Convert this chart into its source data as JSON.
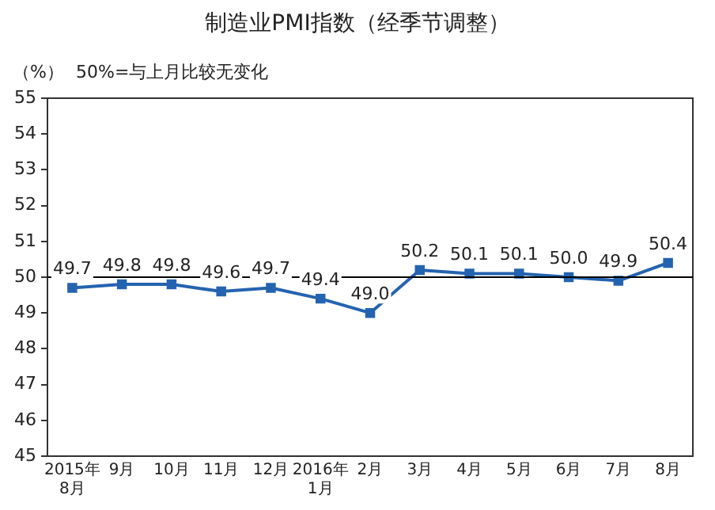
{
  "chart_data": {
    "type": "line",
    "title": "制造业PMI指数（经季节调整）",
    "ylabel": "（%）",
    "annotations": [
      "50%=与上月比较无变化"
    ],
    "categories": [
      "2015年\n8月",
      "9月",
      "10月",
      "11月",
      "12月",
      "2016年\n1月",
      "2月",
      "3月",
      "4月",
      "5月",
      "6月",
      "7月",
      "8月"
    ],
    "series": [
      {
        "color": "#2463b0",
        "values": [
          49.7,
          49.8,
          49.8,
          49.6,
          49.7,
          49.4,
          49.0,
          50.2,
          50.1,
          50.1,
          50.0,
          49.9,
          50.4
        ],
        "value_labels": [
          "49.7",
          "49.8",
          "49.8",
          "49.6",
          "49.7",
          "49.4",
          "49.0",
          "50.2",
          "50.1",
          "50.1",
          "50.0",
          "49.9",
          "50.4"
        ]
      }
    ],
    "ylim": [
      45,
      55
    ],
    "yticks": [
      45,
      46,
      47,
      48,
      49,
      50,
      51,
      52,
      53,
      54,
      55
    ],
    "ref_lines": [
      {
        "axis": "y",
        "value": 50,
        "color": "#000000"
      }
    ],
    "marker": "square",
    "grid": false,
    "legend": false
  }
}
